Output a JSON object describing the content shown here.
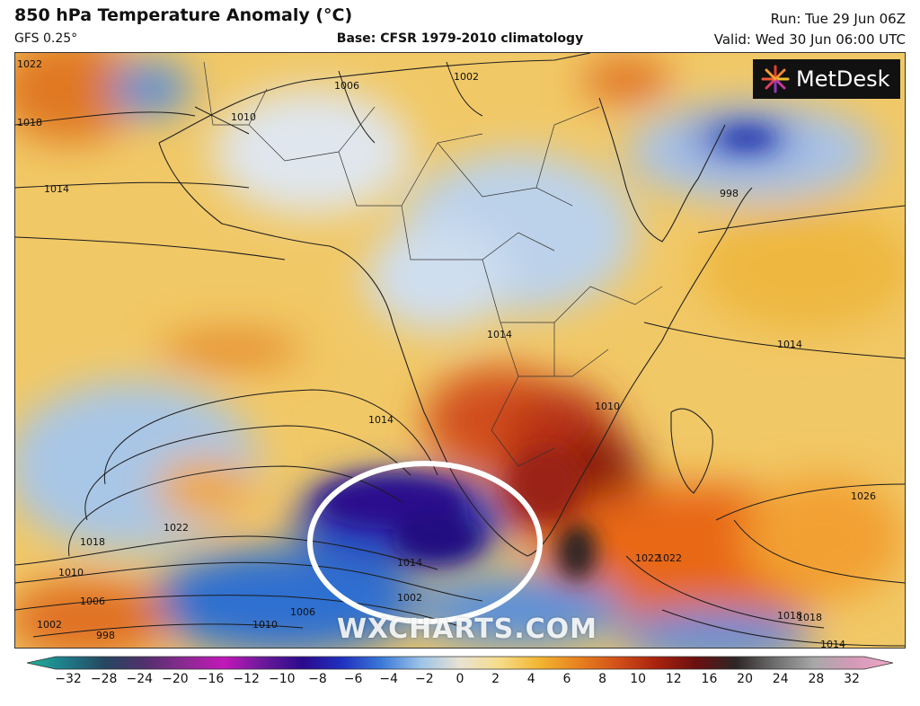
{
  "header": {
    "title": "850 hPa Temperature Anomaly (°C)",
    "model": "GFS 0.25°",
    "base": "Base: CFSR 1979-2010 climatology",
    "run": "Run: Tue 29 Jun 06Z",
    "valid": "Valid: Wed 30 Jun 06:00 UTC"
  },
  "logo": {
    "text": "MetDesk",
    "icon": "metdesk-logo-icon"
  },
  "watermark": "WXCHARTS.COM",
  "isobars": {
    "labels": [
      "1022",
      "1018",
      "1014",
      "1010",
      "1006",
      "1002",
      "998",
      "1014",
      "1010",
      "1014",
      "1022",
      "1018",
      "1022",
      "1018",
      "1010",
      "1006",
      "1002",
      "998",
      "1014",
      "1002",
      "1026",
      "1022",
      "1018",
      "1014",
      "1014",
      "1010",
      "1006"
    ]
  },
  "highlight": {
    "shape": "ellipse",
    "color": "#ffffff"
  },
  "colorbar": {
    "ticks": [
      "−32",
      "−28",
      "−24",
      "−20",
      "−16",
      "−12",
      "−10",
      "−8",
      "−6",
      "−4",
      "−2",
      "0",
      "2",
      "4",
      "6",
      "8",
      "10",
      "12",
      "16",
      "20",
      "24",
      "28",
      "32"
    ],
    "colors": [
      "#1fb39b",
      "#1f7a88",
      "#25465f",
      "#52306d",
      "#8a2a91",
      "#c218b9",
      "#6a1a9a",
      "#2a0a8c",
      "#2030c0",
      "#3b78d8",
      "#9cc4e8",
      "#e9e2d2",
      "#f6dc8a",
      "#f2b632",
      "#e8821e",
      "#d2501a",
      "#a8220e",
      "#6a1010",
      "#2e2626",
      "#6e6e6e",
      "#a8a8a8",
      "#d49ab8",
      "#f0a8c8"
    ]
  }
}
